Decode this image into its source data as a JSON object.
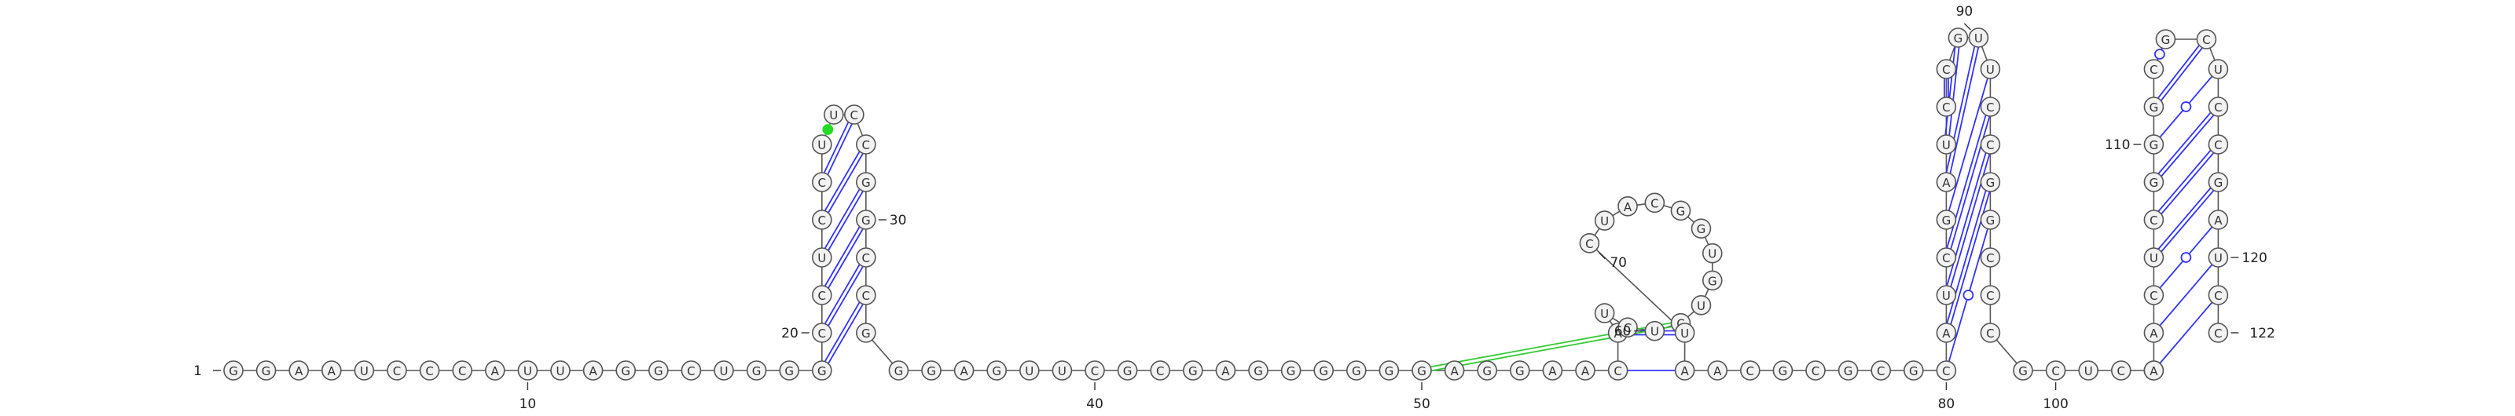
{
  "diagram": {
    "type": "rna-secondary-structure",
    "sequence": "GGAAUCCCAUUAGGCUGGGCCGCCUCCUUGGCCGGGAGUUCGCGAGGGAGGAACAUCUCUGUGGCAUCAAUCCGCCGGCAUCCGGGCCGUCUUUGCGGCCCAAACUCGGGCGCUCCGAAGUCGAGGGUCC",
    "sequence_shown": "GGAAUCCCAUUAGGCUGGGCCGCCUCCUUGGCCGGGAGUUCGCGAGGGAGGAACAUCUCUGUGGCAUCAAUCCGCCGGCAUCCGGGCCGUCUUUGCGGCCCAAACUCGGGCGCUCCGAAGUCGAGGGUCC",
    "length": 122,
    "start_label": "1",
    "end_label": "122",
    "colors": {
      "backbone": "#555555",
      "nucleotide_fill": "#f2f2f2",
      "wc_pair": "#3333ff",
      "gu_pair": "#3333ff",
      "pseudoknot": "#33cc33",
      "noncanonical_green": "#22dd22"
    }
  },
  "nucleotides": [
    "G",
    "G",
    "A",
    "A",
    "U",
    "C",
    "C",
    "C",
    "A",
    "U",
    "U",
    "A",
    "G",
    "G",
    "C",
    "U",
    "G",
    "G",
    "G",
    "C",
    "C",
    "U",
    "C",
    "C",
    "U",
    "U",
    "C",
    "C",
    "G",
    "G",
    "C",
    "C",
    "G",
    "G",
    "G",
    "A",
    "G",
    "U",
    "U",
    "C",
    "G",
    "C",
    "G",
    "A",
    "G",
    "G",
    "G",
    "G",
    "G",
    "G",
    "A",
    "G",
    "G",
    "A",
    "A",
    "C",
    "A",
    "U",
    "C",
    "U",
    "C",
    "U",
    "G",
    "U",
    "G",
    "G",
    "C",
    "A",
    "U",
    "C",
    "U",
    "A",
    "A",
    "C",
    "G",
    "C",
    "G",
    "C",
    "G",
    "C",
    "A",
    "U",
    "C",
    "G",
    "A",
    "U",
    "C",
    "C",
    "G",
    "U",
    "U",
    "C",
    "C",
    "G",
    "G",
    "C",
    "C",
    "C",
    "G",
    "C",
    "U",
    "C",
    "A",
    "A",
    "A",
    "C",
    "U",
    "C",
    "G",
    "G",
    "G",
    "C",
    "G",
    "C",
    "U",
    "C",
    "C",
    "G",
    "A",
    "U",
    "C",
    "C"
  ],
  "labels": [
    {
      "n": 1,
      "text": "1"
    },
    {
      "n": 10,
      "text": "10"
    },
    {
      "n": 20,
      "text": "20"
    },
    {
      "n": 30,
      "text": "30"
    },
    {
      "n": 40,
      "text": "40"
    },
    {
      "n": 50,
      "text": "50"
    },
    {
      "n": 60,
      "text": "60"
    },
    {
      "n": 70,
      "text": "70"
    },
    {
      "n": 80,
      "text": "80"
    },
    {
      "n": 90,
      "text": "90"
    },
    {
      "n": 100,
      "text": "100"
    },
    {
      "n": 110,
      "text": "110"
    },
    {
      "n": 120,
      "text": "120"
    },
    {
      "n": 122,
      "text": "122"
    }
  ],
  "pairs": [
    {
      "i": 19,
      "j": 32,
      "type": "wc"
    },
    {
      "i": 20,
      "j": 31,
      "type": "wc"
    },
    {
      "i": 21,
      "j": 30,
      "type": "wc"
    },
    {
      "i": 22,
      "j": 29,
      "type": "wc"
    },
    {
      "i": 23,
      "j": 28,
      "type": "wc"
    },
    {
      "i": 24,
      "j": 27,
      "type": "wc"
    },
    {
      "i": 25,
      "j": 26,
      "type": "green-dot"
    },
    {
      "i": 56,
      "j": 72,
      "type": "single"
    },
    {
      "i": 57,
      "j": 71,
      "type": "wc"
    },
    {
      "i": 83,
      "j": 92,
      "type": "wc"
    },
    {
      "i": 84,
      "j": 91,
      "type": "single"
    },
    {
      "i": 85,
      "j": 90,
      "type": "wc"
    },
    {
      "i": 86,
      "j": 89,
      "type": "wc"
    },
    {
      "i": 87,
      "j": 88,
      "type": "wc"
    },
    {
      "i": 82,
      "j": 93,
      "type": "wc"
    },
    {
      "i": 81,
      "j": 94,
      "type": "wc"
    },
    {
      "i": 80,
      "j": 95,
      "type": "gu"
    },
    {
      "i": 104,
      "j": 121,
      "type": "single"
    },
    {
      "i": 105,
      "j": 120,
      "type": "single"
    },
    {
      "i": 106,
      "j": 119,
      "type": "gu"
    },
    {
      "i": 107,
      "j": 118,
      "type": "wc"
    },
    {
      "i": 108,
      "j": 117,
      "type": "wc"
    },
    {
      "i": 109,
      "j": 116,
      "type": "wc"
    },
    {
      "i": 110,
      "j": 115,
      "type": "gu"
    },
    {
      "i": 111,
      "j": 114,
      "type": "wc"
    },
    {
      "i": 112,
      "j": 113,
      "type": "gu"
    },
    {
      "i": 50,
      "j": 61,
      "type": "pseudoknot"
    }
  ]
}
